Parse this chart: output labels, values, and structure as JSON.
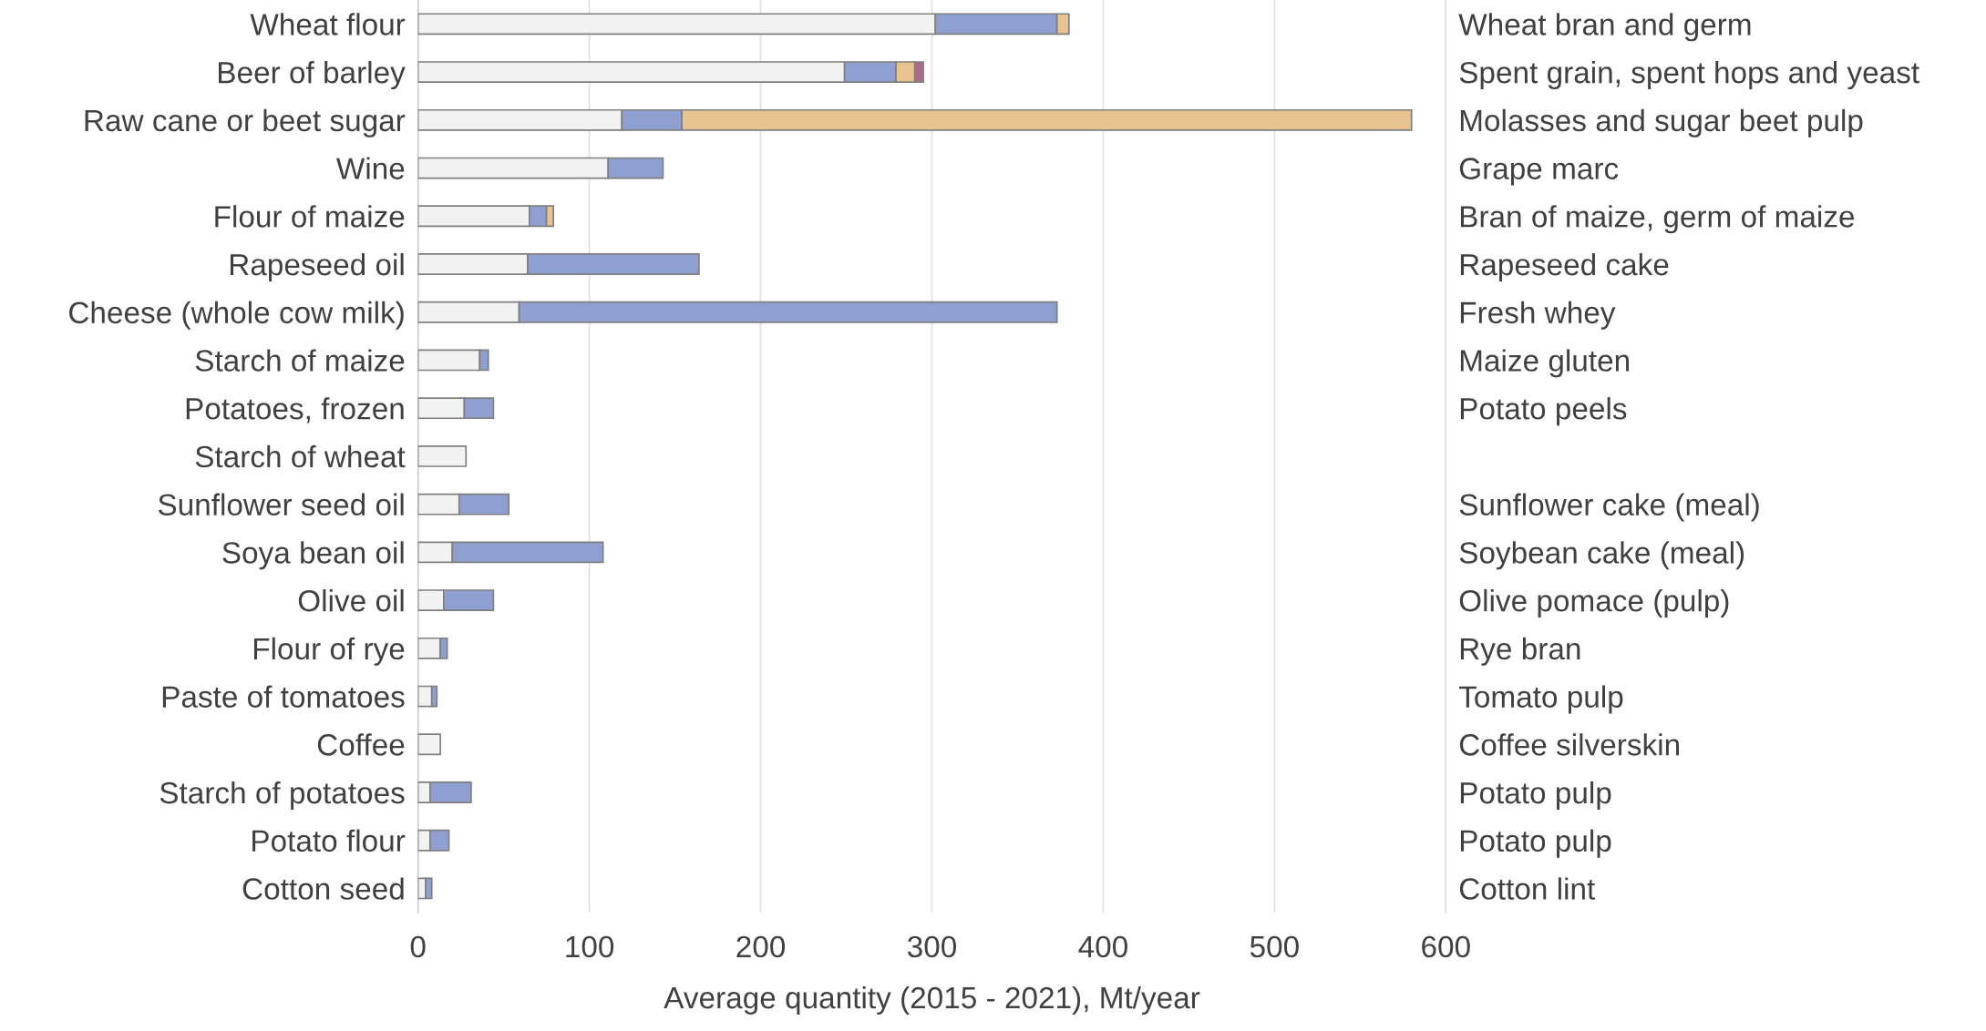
{
  "chart_data": {
    "type": "bar",
    "orientation": "horizontal",
    "stacked": true,
    "xlabel": "Average quantity (2015 - 2021), Mt/year",
    "categories": [
      "Wheat flour",
      "Beer of barley",
      "Raw cane or beet sugar",
      "Wine",
      "Flour of maize",
      "Rapeseed oil",
      "Cheese (whole cow milk)",
      "Starch of maize",
      "Potatoes, frozen",
      "Starch of wheat",
      "Sunflower seed oil",
      "Soya bean oil",
      "Olive oil",
      "Flour of rye",
      "Paste of tomatoes",
      "Coffee",
      "Starch of potatoes",
      "Potato flour",
      "Cotton seed"
    ],
    "series": [
      {
        "color": "#f2f2f2",
        "values": [
          302,
          249,
          119,
          111,
          65,
          64,
          59,
          36,
          27,
          28,
          24,
          20,
          15,
          13,
          8,
          13,
          7,
          7,
          4.5
        ]
      },
      {
        "color": "#8fa0d0",
        "values": [
          71,
          30,
          35,
          32,
          10,
          100,
          314,
          5,
          17,
          null,
          29,
          88,
          29,
          4,
          3,
          null,
          24,
          11,
          3.5
        ]
      },
      {
        "color": "#e6c38f",
        "values": [
          7,
          11,
          426,
          null,
          4,
          null,
          null,
          null,
          null,
          null,
          null,
          null,
          null,
          null,
          null,
          null,
          null,
          null,
          null
        ]
      },
      {
        "color": "#b06a8a",
        "values": [
          null,
          5,
          null,
          null,
          null,
          null,
          null,
          null,
          null,
          null,
          null,
          null,
          null,
          null,
          null,
          null,
          null,
          null,
          null
        ]
      }
    ],
    "xlim": [
      0,
      600
    ],
    "xticks": [
      0,
      100,
      200,
      300,
      400,
      500,
      600
    ],
    "grid": "x",
    "y2_categories": [
      "Wheat bran and germ",
      "Spent grain, spent hops and yeast",
      "Molasses and sugar beet pulp",
      "Grape marc",
      "Bran of maize, germ of maize",
      "Rapeseed cake",
      "Fresh whey",
      "Maize gluten",
      "Potato peels",
      null,
      "Sunflower cake (meal)",
      "Soybean cake (meal)",
      "Olive pomace (pulp)",
      "Rye bran",
      "Tomato pulp",
      "Coffee silverskin",
      "Potato pulp",
      "Potato pulp",
      "Cotton lint"
    ]
  }
}
